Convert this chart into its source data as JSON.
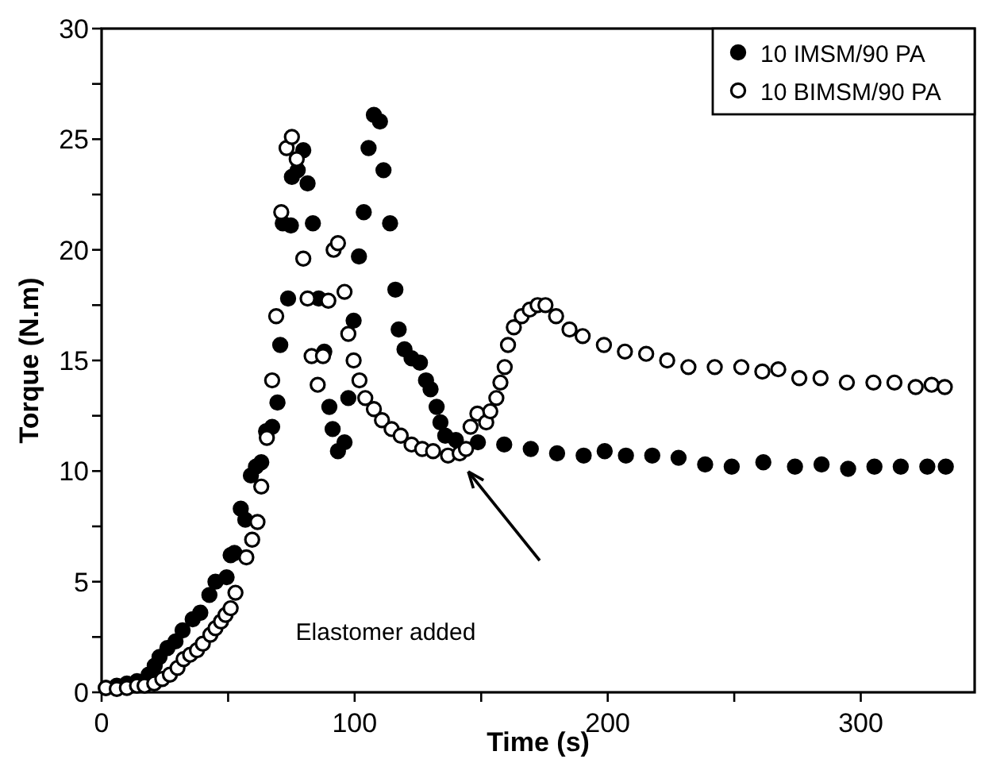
{
  "chart_data": {
    "type": "scatter",
    "xlabel": "Time (s)",
    "ylabel": "Torque (N.m)",
    "xlim": [
      0,
      345
    ],
    "ylim": [
      0,
      30
    ],
    "xticks": [
      0,
      {
        "value": 50,
        "label": null
      },
      100,
      {
        "value": 150,
        "label": null
      },
      200,
      {
        "value": 250,
        "label": null
      },
      300
    ],
    "yticks": [
      0,
      {
        "value": 2.5,
        "label": null
      },
      5,
      {
        "value": 7.5,
        "label": null
      },
      10,
      {
        "value": 12.5,
        "label": null
      },
      15,
      {
        "value": 17.5,
        "label": null
      },
      20,
      {
        "value": 22.5,
        "label": null
      },
      25,
      {
        "value": 27.5,
        "label": null
      },
      30
    ],
    "grid": false,
    "legend": "top right",
    "marker": "circle",
    "annotations": [
      "Elastomer added"
    ],
    "series": [
      {
        "name": "10 IMSM/90 PA",
        "color": "#000000",
        "x": [
          1.7,
          6,
          10,
          14,
          18.6,
          21,
          22.9,
          26,
          29.2,
          32,
          36,
          39,
          42.6,
          45,
          49.4,
          51,
          52.5,
          55,
          56.8,
          59,
          61,
          63.1,
          65,
          67.4,
          69.5,
          70.6,
          71.6,
          73.7,
          74.8,
          75.2,
          77.5,
          79.7,
          81.4,
          83.5,
          85.8,
          88,
          90,
          91.3,
          93.4,
          96,
          97.5,
          99.6,
          101.7,
          103.6,
          105.5,
          107.6,
          110,
          111.4,
          114,
          116.1,
          117.4,
          119.7,
          122.5,
          125.8,
          128.2,
          130,
          132.4,
          133.9,
          135.8,
          140,
          148.7,
          159.1,
          169.6,
          180,
          190.5,
          198.8,
          207.2,
          217.6,
          228,
          238.5,
          249,
          261.5,
          274,
          284.5,
          295,
          305.4,
          315.8,
          326.3,
          333.6
        ],
        "values": [
          0.2,
          0.3,
          0.4,
          0.5,
          0.8,
          1.2,
          1.6,
          2.0,
          2.3,
          2.8,
          3.3,
          3.6,
          4.4,
          5.0,
          5.2,
          6.2,
          6.3,
          8.3,
          7.8,
          9.8,
          10.2,
          10.4,
          11.8,
          12.0,
          13.1,
          15.7,
          21.2,
          17.8,
          21.1,
          23.3,
          23.6,
          24.5,
          23.0,
          21.2,
          17.8,
          15.4,
          12.9,
          11.9,
          10.9,
          11.3,
          13.3,
          16.8,
          19.7,
          21.7,
          24.6,
          26.1,
          25.8,
          23.6,
          21.2,
          18.2,
          16.4,
          15.5,
          15.1,
          14.9,
          14.1,
          13.7,
          12.9,
          12.2,
          11.6,
          11.4,
          11.3,
          11.2,
          11.0,
          10.8,
          10.7,
          10.9,
          10.7,
          10.7,
          10.6,
          10.3,
          10.2,
          10.4,
          10.2,
          10.3,
          10.1,
          10.2,
          10.2,
          10.2,
          10.2
        ]
      },
      {
        "name": "10 BIMSM/90 PA",
        "color": "#000000",
        "x": [
          1.7,
          6,
          10,
          14,
          17,
          20.8,
          24,
          27,
          30,
          32.4,
          35,
          37.7,
          40,
          43,
          45,
          47.2,
          49,
          51,
          52.9,
          57.2,
          59.5,
          61.6,
          63.1,
          65.3,
          67.4,
          69,
          71,
          73.1,
          75.2,
          77.1,
          79.7,
          81.4,
          83,
          85.4,
          87.5,
          89.6,
          91.7,
          93.4,
          96,
          97.5,
          99.6,
          101.9,
          104.2,
          107.6,
          110.8,
          114.6,
          118.2,
          122.5,
          126.7,
          131,
          136.9,
          141.5,
          144,
          145.8,
          148.5,
          152,
          153.6,
          156,
          157.6,
          159.3,
          160.6,
          162.9,
          166,
          169.2,
          172.3,
          175.4,
          179.6,
          184.9,
          190.1,
          198.5,
          206.8,
          215.2,
          223.5,
          231.9,
          242.3,
          252.8,
          261.1,
          267.4,
          275.7,
          284.1,
          294.5,
          305,
          313.3,
          321.7,
          328,
          333.2
        ],
        "values": [
          0.2,
          0.15,
          0.2,
          0.3,
          0.3,
          0.4,
          0.6,
          0.8,
          1.1,
          1.5,
          1.7,
          1.9,
          2.2,
          2.6,
          2.9,
          3.2,
          3.5,
          3.8,
          4.5,
          6.1,
          6.9,
          7.7,
          9.3,
          11.5,
          14.1,
          17.0,
          21.7,
          24.6,
          25.1,
          24.1,
          19.6,
          17.8,
          15.2,
          13.9,
          15.2,
          17.7,
          20.0,
          20.3,
          18.1,
          16.2,
          15.0,
          14.1,
          13.3,
          12.8,
          12.3,
          11.9,
          11.6,
          11.2,
          11.0,
          10.9,
          10.7,
          10.8,
          11.0,
          12.0,
          12.6,
          12.2,
          12.7,
          13.3,
          14.0,
          14.7,
          15.7,
          16.5,
          17.0,
          17.3,
          17.5,
          17.5,
          17.0,
          16.4,
          16.1,
          15.7,
          15.4,
          15.3,
          15.0,
          14.7,
          14.7,
          14.7,
          14.5,
          14.6,
          14.2,
          14.2,
          14.0,
          14.0,
          14.0,
          13.8,
          13.9,
          13.8
        ]
      }
    ]
  }
}
